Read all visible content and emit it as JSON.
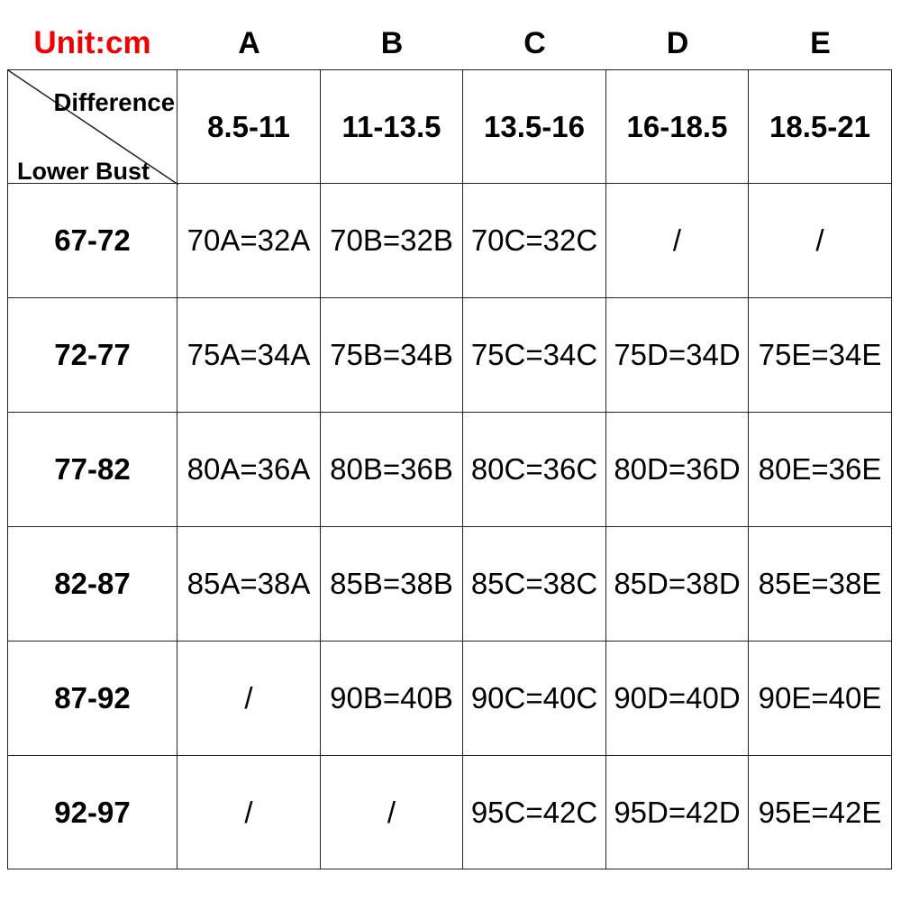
{
  "unit_label": "Unit:cm",
  "unit_color": "#f00000",
  "cup_letters": [
    "A",
    "B",
    "C",
    "D",
    "E"
  ],
  "corner": {
    "top_label": "Difference",
    "bottom_label": "Lower Bust"
  },
  "difference_ranges": [
    "8.5-11",
    "11-13.5",
    "13.5-16",
    "16-18.5",
    "18.5-21"
  ],
  "rows": [
    {
      "lower_bust": "67-72",
      "cells": [
        "70A=32A",
        "70B=32B",
        "70C=32C",
        "/",
        "/"
      ]
    },
    {
      "lower_bust": "72-77",
      "cells": [
        "75A=34A",
        "75B=34B",
        "75C=34C",
        "75D=34D",
        "75E=34E"
      ]
    },
    {
      "lower_bust": "77-82",
      "cells": [
        "80A=36A",
        "80B=36B",
        "80C=36C",
        "80D=36D",
        "80E=36E"
      ]
    },
    {
      "lower_bust": "82-87",
      "cells": [
        "85A=38A",
        "85B=38B",
        "85C=38C",
        "85D=38D",
        "85E=38E"
      ]
    },
    {
      "lower_bust": "87-92",
      "cells": [
        "/",
        "90B=40B",
        "90C=40C",
        "90D=40D",
        "90E=40E"
      ]
    },
    {
      "lower_bust": "92-97",
      "cells": [
        "/",
        "/",
        "95C=42C",
        "95D=42D",
        "95E=42E"
      ]
    }
  ]
}
